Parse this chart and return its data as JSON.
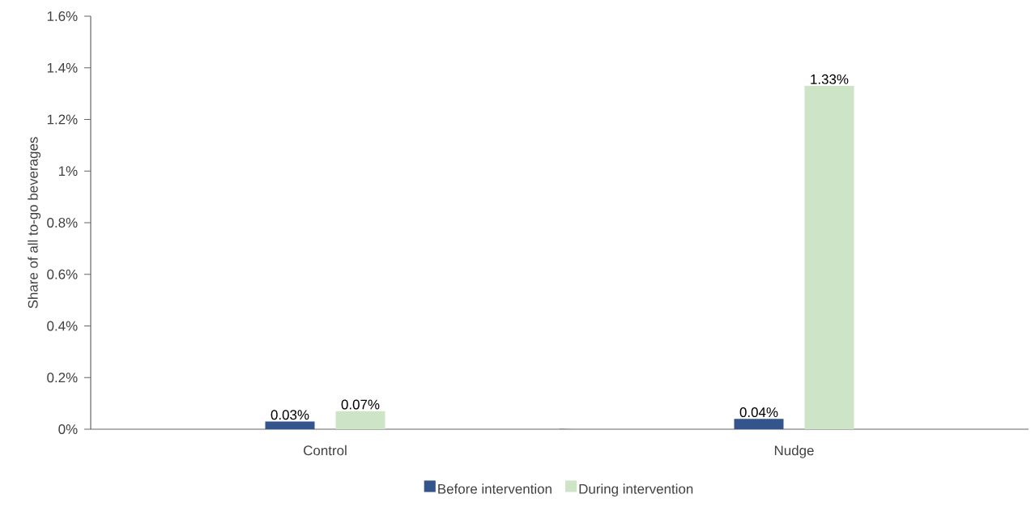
{
  "chart_data": {
    "type": "bar",
    "ylabel": "Share of all to-go beverages",
    "categories": [
      "Control",
      "Nudge"
    ],
    "series": [
      {
        "name": "Before intervention",
        "color": "#34558b",
        "values": [
          0.03,
          0.04
        ],
        "value_labels": [
          "0.03%",
          "0.04%"
        ]
      },
      {
        "name": "During intervention",
        "color": "#cde5c6",
        "values": [
          0.07,
          1.33
        ],
        "value_labels": [
          "0.07%",
          "1.33%"
        ]
      }
    ],
    "ylim": [
      0,
      1.6
    ],
    "yticks": [
      {
        "value": 0,
        "label": "0%"
      },
      {
        "value": 0.2,
        "label": "0.2%"
      },
      {
        "value": 0.4,
        "label": "0.4%"
      },
      {
        "value": 0.6,
        "label": "0.6%"
      },
      {
        "value": 0.8,
        "label": "0.8%"
      },
      {
        "value": 1,
        "label": "1%"
      },
      {
        "value": 1.2,
        "label": "1.2%"
      },
      {
        "value": 1.4,
        "label": "1.4%"
      },
      {
        "value": 1.6,
        "label": "1.6%"
      }
    ],
    "legend": "bottom",
    "grid": false
  }
}
